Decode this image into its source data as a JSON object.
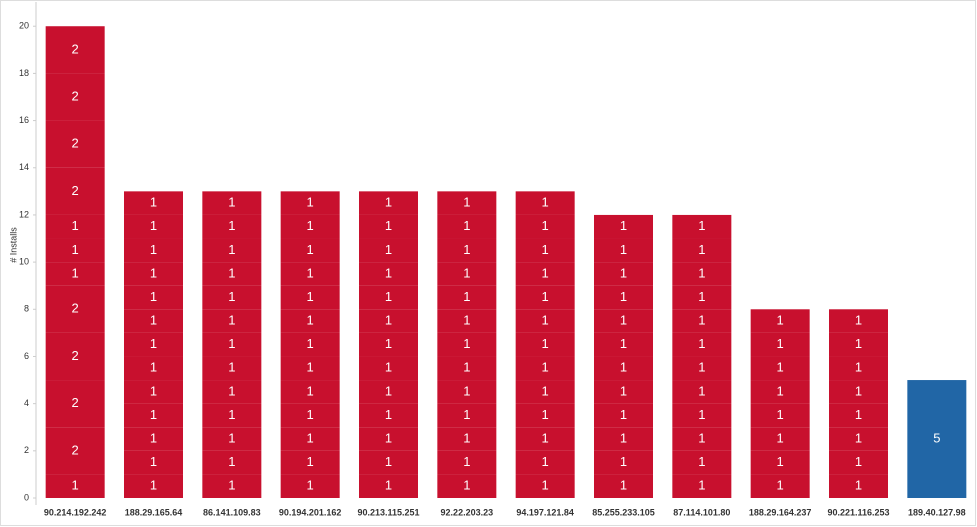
{
  "chart_data": {
    "type": "stacked-bar",
    "y_label": "# Installs",
    "categories": [
      "90.214.192.242",
      "188.29.165.64",
      "86.141.109.83",
      "90.194.201.162",
      "90.213.115.251",
      "92.22.203.23",
      "94.197.121.84",
      "85.255.233.105",
      "87.114.101.80",
      "188.29.164.237",
      "90.221.116.253",
      "189.40.127.98"
    ],
    "segments": [
      [
        1,
        2,
        2,
        2,
        2,
        1,
        1,
        1,
        2,
        2,
        2,
        2
      ],
      [
        1,
        1,
        1,
        1,
        1,
        1,
        1,
        1,
        1,
        1,
        1,
        1,
        1
      ],
      [
        1,
        1,
        1,
        1,
        1,
        1,
        1,
        1,
        1,
        1,
        1,
        1,
        1
      ],
      [
        1,
        1,
        1,
        1,
        1,
        1,
        1,
        1,
        1,
        1,
        1,
        1,
        1
      ],
      [
        1,
        1,
        1,
        1,
        1,
        1,
        1,
        1,
        1,
        1,
        1,
        1,
        1
      ],
      [
        1,
        1,
        1,
        1,
        1,
        1,
        1,
        1,
        1,
        1,
        1,
        1,
        1
      ],
      [
        1,
        1,
        1,
        1,
        1,
        1,
        1,
        1,
        1,
        1,
        1,
        1,
        1
      ],
      [
        1,
        1,
        1,
        1,
        1,
        1,
        1,
        1,
        1,
        1,
        1,
        1
      ],
      [
        1,
        1,
        1,
        1,
        1,
        1,
        1,
        1,
        1,
        1,
        1,
        1
      ],
      [
        1,
        1,
        1,
        1,
        1,
        1,
        1,
        1
      ],
      [
        1,
        1,
        1,
        1,
        1,
        1,
        1,
        1
      ],
      [
        5
      ]
    ],
    "colors": [
      "#c8102e",
      "#c8102e",
      "#c8102e",
      "#c8102e",
      "#c8102e",
      "#c8102e",
      "#c8102e",
      "#c8102e",
      "#c8102e",
      "#c8102e",
      "#c8102e",
      "#2166a6"
    ],
    "ylim": [
      0,
      20.9
    ],
    "yticks": [
      0,
      2,
      4,
      6,
      8,
      10,
      12,
      14,
      16,
      18,
      20
    ]
  }
}
